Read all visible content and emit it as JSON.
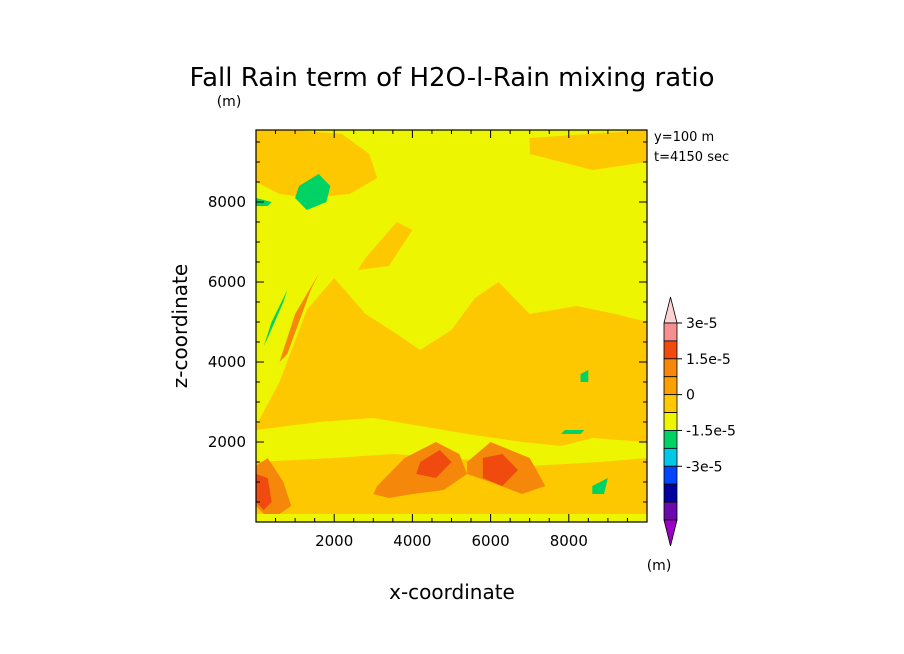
{
  "chart_data": {
    "type": "heatmap",
    "title": "Fall Rain term of H2O-l-Rain mixing ratio",
    "units": "(m)",
    "xlabel": "x-coordinate",
    "ylabel": "z-coordinate",
    "xlim": [
      0,
      10000
    ],
    "ylim": [
      0,
      9800
    ],
    "xticks": [
      2000,
      4000,
      6000,
      8000
    ],
    "yticks": [
      2000,
      4000,
      6000,
      8000
    ],
    "annotations": [
      "y=100 m",
      "t=4150 sec"
    ],
    "colorbar": {
      "units": "(m)",
      "labels": [
        "3e-5",
        "1.5e-5",
        "0",
        "-1.5e-5",
        "-3e-5"
      ],
      "colors": [
        "#fcd2d2",
        "#f59090",
        "#f04a0e",
        "#f5880a",
        "#fba000",
        "#fec800",
        "#eef500",
        "#00d264",
        "#00c8e6",
        "#0046ff",
        "#0000a0",
        "#6a0aaa",
        "#9b00c8"
      ]
    },
    "background_level_color": "#eef500",
    "regions": [
      {
        "name": "top-left orange band",
        "color": "#fec800",
        "x": [
          0,
          1000,
          2200,
          2900,
          3100,
          2400,
          1400,
          600,
          0
        ],
        "y": [
          9800,
          9800,
          9700,
          9200,
          8600,
          8200,
          8100,
          8200,
          8500
        ]
      },
      {
        "name": "top-right orange patch",
        "color": "#fec800",
        "x": [
          7000,
          10000,
          10000,
          8600,
          7000
        ],
        "y": [
          9600,
          9800,
          9000,
          8800,
          9200
        ]
      },
      {
        "name": "green blob upper left",
        "color": "#00d264",
        "x": [
          1100,
          1600,
          1900,
          1800,
          1300,
          1000
        ],
        "y": [
          8400,
          8700,
          8400,
          8000,
          7800,
          8100
        ]
      },
      {
        "name": "orange streak 6000",
        "color": "#fec800",
        "x": [
          2800,
          3600,
          4000,
          3400,
          2600
        ],
        "y": [
          6600,
          7500,
          7300,
          6400,
          6300
        ]
      },
      {
        "name": "mid orange region",
        "color": "#fec800",
        "x": [
          0,
          600,
          1300,
          2000,
          2800,
          3600,
          4200,
          5000,
          5600,
          6200,
          7000,
          8200,
          9200,
          10000,
          10000,
          0
        ],
        "y": [
          2400,
          3500,
          5300,
          6100,
          5200,
          4700,
          4300,
          4800,
          5600,
          6000,
          5200,
          5400,
          5200,
          5000,
          200,
          200
        ]
      },
      {
        "name": "lower yellow band",
        "color": "#eef500",
        "x": [
          0,
          1600,
          3000,
          4200,
          5400,
          6800,
          7800,
          8600,
          10000,
          10000,
          8800,
          7000,
          5000,
          3500,
          2000,
          0
        ],
        "y": [
          2300,
          2500,
          2600,
          2400,
          2200,
          2000,
          1900,
          2100,
          2000,
          1600,
          1500,
          1400,
          1600,
          1700,
          1600,
          1500
        ]
      },
      {
        "name": "dark orange streak 5000",
        "color": "#f5880a",
        "x": [
          800,
          1400,
          1600,
          1000,
          600
        ],
        "y": [
          4200,
          5800,
          6200,
          5200,
          4000
        ]
      },
      {
        "name": "green strip left",
        "color": "#00d264",
        "x": [
          300,
          700,
          800,
          400,
          200
        ],
        "y": [
          4600,
          5500,
          5800,
          5000,
          4400
        ]
      },
      {
        "name": "dark orange bottom center",
        "color": "#f5880a",
        "x": [
          3100,
          3800,
          4600,
          5200,
          5400,
          4800,
          4000,
          3400,
          3000
        ],
        "y": [
          900,
          1600,
          2000,
          1700,
          1200,
          800,
          700,
          600,
          700
        ]
      },
      {
        "name": "dark orange bottom right",
        "color": "#f5880a",
        "x": [
          5400,
          6000,
          7000,
          7400,
          6800,
          6000,
          5400
        ],
        "y": [
          1500,
          2000,
          1600,
          900,
          700,
          1000,
          1200
        ]
      },
      {
        "name": "dark orange bottom left",
        "color": "#f5880a",
        "x": [
          0,
          300,
          700,
          900,
          600,
          200,
          0
        ],
        "y": [
          1400,
          1600,
          1000,
          400,
          200,
          200,
          400
        ]
      },
      {
        "name": "red core left",
        "color": "#f04a0e",
        "x": [
          0,
          300,
          400,
          200,
          0
        ],
        "y": [
          1200,
          1100,
          500,
          300,
          500
        ]
      },
      {
        "name": "red core center",
        "color": "#f04a0e",
        "x": [
          4200,
          4700,
          5000,
          4600,
          4100
        ],
        "y": [
          1500,
          1800,
          1500,
          1100,
          1200
        ]
      },
      {
        "name": "red core right",
        "color": "#f04a0e",
        "x": [
          5800,
          6300,
          6700,
          6300,
          5800
        ],
        "y": [
          1600,
          1700,
          1300,
          900,
          1100
        ]
      },
      {
        "name": "green small 3800",
        "color": "#00d264",
        "x": [
          8300,
          8500,
          8500,
          8300
        ],
        "y": [
          3700,
          3800,
          3500,
          3500
        ]
      },
      {
        "name": "green small 2200",
        "color": "#00d264",
        "x": [
          7900,
          8400,
          8300,
          7800
        ],
        "y": [
          2300,
          2300,
          2200,
          2200
        ]
      },
      {
        "name": "green small 1000",
        "color": "#00d264",
        "x": [
          8600,
          9000,
          8900,
          8600
        ],
        "y": [
          900,
          1100,
          700,
          700
        ]
      },
      {
        "name": "green sliver 8000",
        "color": "#00d264",
        "x": [
          0,
          400,
          300,
          0
        ],
        "y": [
          8100,
          8000,
          7900,
          7900
        ]
      }
    ]
  }
}
